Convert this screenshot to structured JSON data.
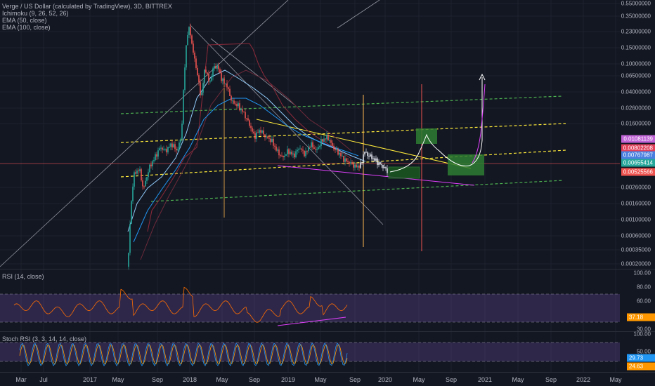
{
  "legend": {
    "main": "Verge / US Dollar (calculated by TradingView), 3D, BITTREX",
    "ichimoku": "Ichimoku (9, 26, 52, 26)",
    "ema50": "EMA (50, close)",
    "ema100": "EMA (100, close)",
    "rsi": "RSI (14, close)",
    "stoch": "Stoch RSI (3, 3, 14, 14, close)"
  },
  "price_axis": [
    "0.55000000",
    "0.35000000",
    "0.23000000",
    "0.15000000",
    "0.10000000",
    "0.06500000",
    "0.04000000",
    "0.02600000",
    "0.01600000",
    "0.00260000",
    "0.00160000",
    "0.00100000",
    "0.00060000",
    "0.00035000",
    "0.00020000"
  ],
  "price_badges": [
    {
      "text": "0.01081139",
      "color": "#c064d6"
    },
    {
      "text": "0.00802208",
      "color": "#e0405a"
    },
    {
      "text": "0.00767987",
      "color": "#4a7fe0"
    },
    {
      "text": "0.00655414",
      "color": "#26a69a"
    },
    {
      "text": "0.00525566",
      "color": "#ef5350"
    }
  ],
  "rsi_axis": [
    "100.00",
    "80.00",
    "60.00",
    "30.00"
  ],
  "rsi_badge": {
    "text": "37.18",
    "color": "#ff9800"
  },
  "stoch_axis": [
    "100.00",
    "50.00"
  ],
  "stoch_badges": [
    {
      "text": "29.73",
      "color": "#2196f3"
    },
    {
      "text": "24.63",
      "color": "#ff9800"
    }
  ],
  "time_axis": [
    "Mar",
    "Jul",
    "2017",
    "May",
    "Sep",
    "2018",
    "May",
    "Sep",
    "2019",
    "May",
    "Sep",
    "2020",
    "May",
    "Sep",
    "2021",
    "May",
    "Sep",
    "2022",
    "May"
  ],
  "colors": {
    "background": "#131722",
    "grid": "#1e222d",
    "up": "#26a69a",
    "down": "#ef5350",
    "channel_green": "#4caf50",
    "channel_yellow": "#ffeb3b",
    "rsi_line": "#ff6d00",
    "rsi_band": "#7e57c2",
    "stoch_k": "#2196f3",
    "stoch_d": "#ff9800",
    "projection": "#ffffff"
  }
}
